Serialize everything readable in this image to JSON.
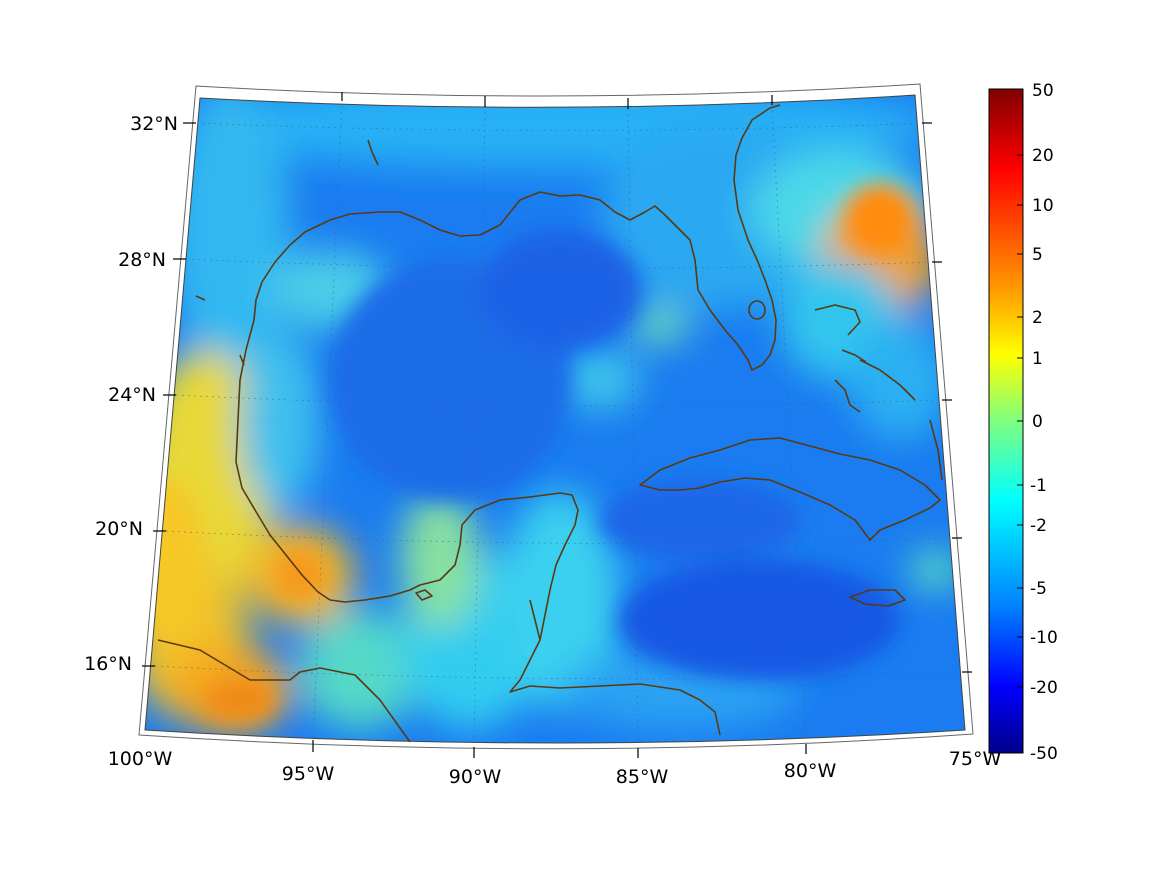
{
  "map": {
    "lat_labels": [
      "32°N",
      "28°N",
      "24°N",
      "20°N",
      "16°N"
    ],
    "lon_labels": [
      "100°W",
      "95°W",
      "90°W",
      "85°W",
      "80°W",
      "75°W"
    ],
    "land_outline_color": "#5a3a12"
  },
  "colorbar": {
    "tick_labels": [
      "50",
      "20",
      "10",
      "5",
      "2",
      "1",
      "0",
      "-1",
      "-2",
      "-5",
      "-10",
      "-20",
      "-50"
    ],
    "colormap": "jet"
  }
}
